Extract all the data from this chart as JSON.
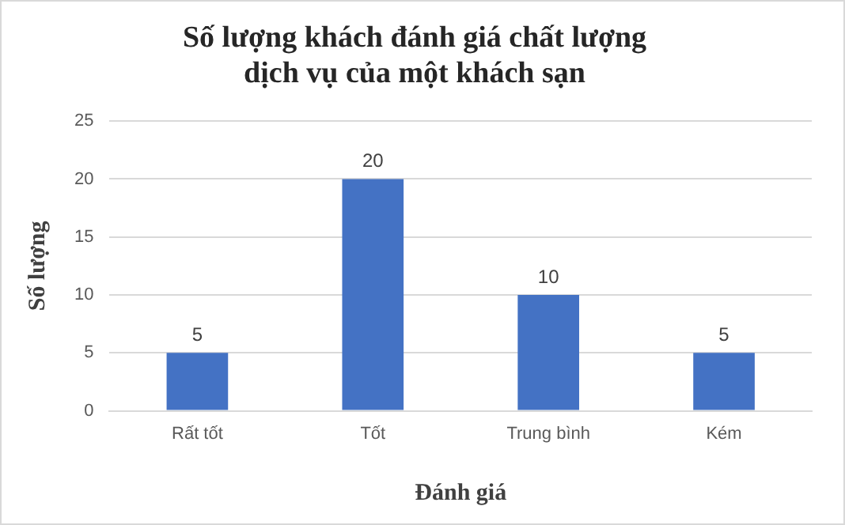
{
  "chart_data": {
    "type": "bar",
    "title": "Số lượng khách đánh giá chất lượng dịch vụ của một khách sạn",
    "xlabel": "Đánh giá",
    "ylabel": "Số lượng",
    "categories": [
      "Rất tốt",
      "Tốt",
      "Trung bình",
      "Kém"
    ],
    "values": [
      5,
      20,
      10,
      5
    ],
    "color": "#4472c4",
    "ylim": [
      0,
      25
    ],
    "yticks": [
      0,
      5,
      10,
      15,
      20,
      25
    ],
    "grid": "y",
    "data_labels": true
  }
}
